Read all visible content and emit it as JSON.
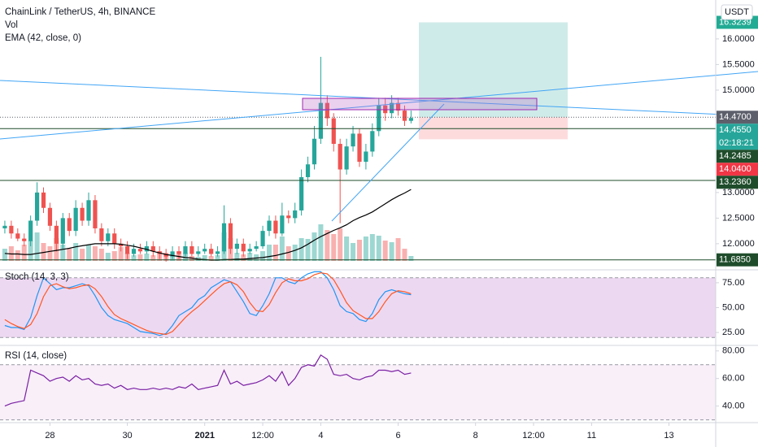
{
  "chart_data": [
    {
      "type": "candlestick",
      "title": "ChainLink / TetherUS, 4h, BINANCE",
      "currency": "USDT",
      "up_color": "#26a69a",
      "down_color": "#ef5350",
      "x": [
        -28,
        -24,
        -20,
        -16,
        -12,
        -8,
        -4,
        0,
        4,
        8,
        12,
        16,
        20,
        24,
        28,
        32,
        36,
        40,
        44,
        48,
        52,
        56,
        60,
        64,
        68,
        72,
        76,
        80,
        84,
        88,
        92,
        96,
        100,
        104,
        108,
        112,
        116,
        120,
        124,
        128,
        132,
        136,
        140,
        144,
        148,
        152,
        156,
        160,
        164,
        168,
        172,
        176,
        180,
        184,
        188,
        192,
        196,
        200,
        204,
        208,
        212,
        216,
        220,
        224
      ],
      "open": [
        12.3,
        12.35,
        12.2,
        12.1,
        12.05,
        12.45,
        13.0,
        12.7,
        12.35,
        12.0,
        12.5,
        12.25,
        12.7,
        12.45,
        12.85,
        12.3,
        12.05,
        12.2,
        12.0,
        11.95,
        11.8,
        11.9,
        11.85,
        11.95,
        11.85,
        11.8,
        11.75,
        11.85,
        11.8,
        11.95,
        11.8,
        11.85,
        11.9,
        11.8,
        11.85,
        12.4,
        11.9,
        12.0,
        11.85,
        11.9,
        11.95,
        12.25,
        12.45,
        12.2,
        12.55,
        12.5,
        12.65,
        13.3,
        13.55,
        14.05,
        14.75,
        14.45,
        13.95,
        13.45,
        13.9,
        14.15,
        13.6,
        13.8,
        14.2,
        14.7,
        14.55,
        14.75,
        14.6,
        14.4
      ],
      "high": [
        12.45,
        12.45,
        12.3,
        12.2,
        12.55,
        13.2,
        13.1,
        12.8,
        12.45,
        12.6,
        12.6,
        12.85,
        12.8,
        13.0,
        12.95,
        12.4,
        12.3,
        12.3,
        12.1,
        12.05,
        12.0,
        12.0,
        12.05,
        12.05,
        11.95,
        11.9,
        11.95,
        11.95,
        12.05,
        12.05,
        11.95,
        12.0,
        12.0,
        11.95,
        12.75,
        12.5,
        12.1,
        12.1,
        12.0,
        12.05,
        12.35,
        12.55,
        12.55,
        12.8,
        12.65,
        12.8,
        13.45,
        13.7,
        14.3,
        15.65,
        14.9,
        14.55,
        14.05,
        14.05,
        14.3,
        14.25,
        13.95,
        14.35,
        14.85,
        14.85,
        14.9,
        14.85,
        14.7,
        14.6
      ],
      "low": [
        12.2,
        12.1,
        12.05,
        11.95,
        11.95,
        12.35,
        12.6,
        12.25,
        11.85,
        11.9,
        12.15,
        12.15,
        12.35,
        12.35,
        12.2,
        11.95,
        11.95,
        11.9,
        11.85,
        11.7,
        11.75,
        11.8,
        11.8,
        11.75,
        11.7,
        11.65,
        11.7,
        11.7,
        11.75,
        11.75,
        11.75,
        11.8,
        11.75,
        11.75,
        11.8,
        11.8,
        11.8,
        11.75,
        11.8,
        11.85,
        11.9,
        12.15,
        12.1,
        12.15,
        12.4,
        12.4,
        12.55,
        13.2,
        13.45,
        13.95,
        14.3,
        13.8,
        12.4,
        13.35,
        13.8,
        13.5,
        13.45,
        13.7,
        14.1,
        14.4,
        14.45,
        14.5,
        14.3,
        14.35
      ],
      "close": [
        12.35,
        12.2,
        12.1,
        12.05,
        12.45,
        13.0,
        12.7,
        12.35,
        12.0,
        12.5,
        12.25,
        12.7,
        12.45,
        12.85,
        12.3,
        12.05,
        12.2,
        12.0,
        11.95,
        11.8,
        11.9,
        11.85,
        11.95,
        11.85,
        11.8,
        11.75,
        11.85,
        11.8,
        11.95,
        11.8,
        11.85,
        11.9,
        11.8,
        11.85,
        12.4,
        11.9,
        12.0,
        11.85,
        11.9,
        11.95,
        12.25,
        12.45,
        12.2,
        12.55,
        12.5,
        12.65,
        13.3,
        13.55,
        14.05,
        14.75,
        14.45,
        13.95,
        13.45,
        13.9,
        14.15,
        13.6,
        13.8,
        14.2,
        14.7,
        14.55,
        14.75,
        14.6,
        14.4,
        14.455
      ],
      "overlays": [
        {
          "type": "volume",
          "name": "Vol",
          "values": [
            30,
            36,
            26,
            40,
            50,
            70,
            44,
            36,
            56,
            40,
            30,
            44,
            30,
            40,
            36,
            30,
            20,
            24,
            34,
            20,
            14,
            16,
            18,
            14,
            24,
            20,
            12,
            24,
            20,
            12,
            10,
            14,
            12,
            14,
            70,
            56,
            20,
            16,
            20,
            16,
            24,
            40,
            40,
            60,
            36,
            40,
            56,
            54,
            70,
            90,
            76,
            66,
            80,
            60,
            44,
            52,
            60,
            66,
            62,
            50,
            46,
            56,
            30,
            12
          ]
        },
        {
          "type": "line",
          "name": "EMA (42, close, 0)",
          "color": "#000000",
          "values": [
            11.81,
            11.8,
            11.8,
            11.79,
            11.79,
            11.81,
            11.83,
            11.85,
            11.87,
            11.89,
            11.91,
            11.94,
            11.96,
            11.98,
            12.0,
            12.0,
            12.0,
            12.0,
            11.99,
            11.97,
            11.95,
            11.92,
            11.89,
            11.85,
            11.82,
            11.79,
            11.77,
            11.75,
            11.73,
            11.72,
            11.7,
            11.69,
            11.68,
            11.68,
            11.69,
            11.69,
            11.7,
            11.7,
            11.71,
            11.72,
            11.73,
            11.75,
            11.77,
            11.8,
            11.83,
            11.87,
            11.92,
            11.99,
            12.07,
            12.14,
            12.2,
            12.26,
            12.31,
            12.37,
            12.45,
            12.51,
            12.56,
            12.62,
            12.7,
            12.78,
            12.86,
            12.93,
            12.99,
            13.06
          ]
        }
      ],
      "xlim": [
        -31,
        413
      ],
      "xticks": [
        {
          "value": 0,
          "label": "28"
        },
        {
          "value": 48,
          "label": "30"
        },
        {
          "value": 96,
          "label": "2021",
          "bold": true
        },
        {
          "value": 132,
          "label": "12:00"
        },
        {
          "value": 168,
          "label": "4"
        },
        {
          "value": 216,
          "label": "6"
        },
        {
          "value": 264,
          "label": "8"
        },
        {
          "value": 300,
          "label": "12:00"
        },
        {
          "value": 336,
          "label": "11"
        },
        {
          "value": 384,
          "label": "13"
        }
      ],
      "ylim": [
        11.49,
        16.76
      ],
      "yticks": [
        {
          "value": 16,
          "label": "16.0000"
        },
        {
          "value": 15.5,
          "label": "15.5000"
        },
        {
          "value": 15,
          "label": "15.0000"
        },
        {
          "value": 13,
          "label": "13.0000"
        },
        {
          "value": 12.5,
          "label": "12.5000"
        },
        {
          "value": 12,
          "label": "12.0000"
        }
      ],
      "price_tags": [
        {
          "value": 16.3239,
          "label": "16.3239",
          "color": "#22ab94"
        },
        {
          "value": 14.47,
          "label": "14.4700",
          "color": "#5d606b",
          "line": "dotted"
        },
        {
          "value": 14.455,
          "label": "14.4550",
          "color": "#26a69a",
          "countdown": "02:18:21"
        },
        {
          "value": 14.2485,
          "label": "14.2485",
          "color": "#1f4d2b",
          "line": "solid"
        },
        {
          "value": 14.04,
          "label": "14.0400",
          "color": "#f23645"
        },
        {
          "value": 13.236,
          "label": "13.2360",
          "color": "#1f4d2b",
          "line": "solid"
        },
        {
          "value": 11.685,
          "label": "11.6850",
          "color": "#1f4d2b",
          "line": "solid"
        }
      ]
    },
    {
      "type": "line",
      "title": "Stoch (14, 3, 3)",
      "band": [
        20,
        80
      ],
      "band_color": "#e1bee7",
      "ylim": [
        12,
        88
      ],
      "yticks": [
        {
          "value": 75,
          "label": "75.00"
        },
        {
          "value": 50,
          "label": "50.00"
        },
        {
          "value": 25,
          "label": "25.00"
        }
      ],
      "series": [
        {
          "color": "#2196f3",
          "values": [
            32,
            30,
            30,
            28,
            40,
            62,
            80,
            74,
            68,
            70,
            70,
            72,
            74,
            72,
            62,
            50,
            42,
            38,
            36,
            34,
            30,
            26,
            25,
            24,
            22,
            24,
            32,
            42,
            46,
            50,
            58,
            62,
            70,
            74,
            78,
            76,
            66,
            56,
            44,
            42,
            52,
            64,
            80,
            80,
            76,
            74,
            80,
            84,
            86,
            86,
            80,
            68,
            52,
            46,
            44,
            38,
            36,
            44,
            58,
            66,
            68,
            66,
            64,
            63
          ]
        },
        {
          "color": "#ff5722",
          "values": [
            38,
            34,
            31,
            29,
            33,
            44,
            61,
            72,
            74,
            71,
            69,
            70,
            72,
            73,
            69,
            61,
            51,
            43,
            39,
            36,
            33,
            30,
            27,
            25,
            24,
            23,
            26,
            33,
            40,
            46,
            51,
            57,
            63,
            69,
            74,
            76,
            73,
            66,
            55,
            47,
            46,
            53,
            65,
            75,
            79,
            77,
            77,
            79,
            83,
            85,
            84,
            78,
            67,
            55,
            47,
            43,
            39,
            39,
            46,
            56,
            64,
            67,
            66,
            64
          ]
        }
      ]
    },
    {
      "type": "line",
      "title": "RSI (14, close)",
      "band": [
        30,
        70
      ],
      "band_color": "#f3e5f5",
      "ylim": [
        28,
        84
      ],
      "yticks": [
        {
          "value": 80,
          "label": "80.00"
        },
        {
          "value": 60,
          "label": "60.00"
        },
        {
          "value": 40,
          "label": "40.00"
        }
      ],
      "series": [
        {
          "color": "#7b1fa2",
          "values": [
            40,
            42,
            43,
            44,
            66,
            64,
            62,
            58,
            60,
            61,
            58,
            62,
            59,
            60,
            56,
            55,
            56,
            53,
            55,
            52,
            53,
            52,
            52,
            53,
            52,
            53,
            52,
            54,
            53,
            56,
            52,
            53,
            54,
            55,
            66,
            56,
            58,
            55,
            56,
            57,
            59,
            62,
            58,
            65,
            55,
            60,
            68,
            70,
            69,
            77,
            74,
            63,
            62,
            63,
            60,
            59,
            61,
            62,
            66,
            66,
            65,
            66,
            63,
            64
          ]
        }
      ]
    }
  ]
}
